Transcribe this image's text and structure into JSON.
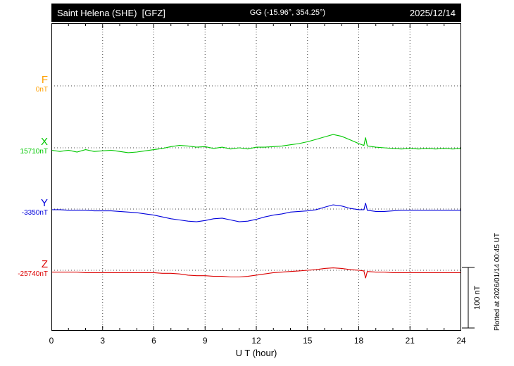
{
  "header": {
    "station": "Saint Helena (SHE)  [GFZ]",
    "coords": "GG (-15.96°, 354.25°)",
    "date": "2025/12/14"
  },
  "x_axis": {
    "title": "U T (hour)"
  },
  "scalebar": {
    "label": "100 nT"
  },
  "plotted_at": "Plotted at 2026/01/14 00:45 UT",
  "chart_data": {
    "type": "line",
    "title": "Saint Helena (SHE) [GFZ] magnetogram",
    "date": "2025/12/14",
    "xlabel": "U T (hour)",
    "xlim": [
      0,
      24
    ],
    "x_ticks": [
      0,
      3,
      6,
      9,
      12,
      15,
      18,
      21,
      24
    ],
    "scale_bar_nT": 100,
    "y_unit": "nT offset from component baseline",
    "grid": "dotted",
    "series": [
      {
        "name": "F",
        "baseline": "0nT",
        "color": "#ffa000",
        "points": []
      },
      {
        "name": "X",
        "baseline": "15710nT",
        "color": "#00c800",
        "points": [
          [
            0,
            -4
          ],
          [
            0.5,
            -6
          ],
          [
            1,
            -4
          ],
          [
            1.5,
            -7
          ],
          [
            2,
            -3
          ],
          [
            2.5,
            -6
          ],
          [
            3,
            -5
          ],
          [
            3.5,
            -4
          ],
          [
            4,
            -6
          ],
          [
            4.5,
            -8
          ],
          [
            5,
            -7
          ],
          [
            5.5,
            -5
          ],
          [
            6,
            -3
          ],
          [
            6.5,
            -1
          ],
          [
            7,
            2
          ],
          [
            7.5,
            4
          ],
          [
            8,
            3
          ],
          [
            8.5,
            1
          ],
          [
            9,
            2
          ],
          [
            9.5,
            -1
          ],
          [
            10,
            1
          ],
          [
            10.5,
            -2
          ],
          [
            11,
            0
          ],
          [
            11.5,
            -2
          ],
          [
            12,
            1
          ],
          [
            12.5,
            1
          ],
          [
            13,
            2
          ],
          [
            13.5,
            3
          ],
          [
            14,
            5
          ],
          [
            14.5,
            7
          ],
          [
            15,
            10
          ],
          [
            15.5,
            14
          ],
          [
            16,
            18
          ],
          [
            16.5,
            22
          ],
          [
            17,
            19
          ],
          [
            17.5,
            13
          ],
          [
            18,
            7
          ],
          [
            18.3,
            4
          ],
          [
            18.4,
            17
          ],
          [
            18.5,
            3
          ],
          [
            19,
            1
          ],
          [
            19.5,
            0
          ],
          [
            20,
            -1
          ],
          [
            20.5,
            -2
          ],
          [
            21,
            -1
          ],
          [
            21.5,
            -2
          ],
          [
            22,
            -1
          ],
          [
            22.5,
            -2
          ],
          [
            23,
            -1
          ],
          [
            23.5,
            -2
          ],
          [
            24,
            -1
          ]
        ]
      },
      {
        "name": "Y",
        "baseline": "-3350nT",
        "color": "#0000dc",
        "points": [
          [
            0,
            -1
          ],
          [
            0.5,
            -1
          ],
          [
            1,
            -2
          ],
          [
            1.5,
            -2
          ],
          [
            2,
            -2
          ],
          [
            2.5,
            -3
          ],
          [
            3,
            -3
          ],
          [
            3.5,
            -3
          ],
          [
            4,
            -4
          ],
          [
            4.5,
            -5
          ],
          [
            5,
            -6
          ],
          [
            5.5,
            -8
          ],
          [
            6,
            -10
          ],
          [
            6.5,
            -13
          ],
          [
            7,
            -16
          ],
          [
            7.5,
            -18
          ],
          [
            8,
            -20
          ],
          [
            8.5,
            -21
          ],
          [
            9,
            -19
          ],
          [
            9.5,
            -16
          ],
          [
            10,
            -15
          ],
          [
            10.5,
            -18
          ],
          [
            11,
            -21
          ],
          [
            11.5,
            -20
          ],
          [
            12,
            -17
          ],
          [
            12.5,
            -13
          ],
          [
            13,
            -10
          ],
          [
            13.5,
            -8
          ],
          [
            14,
            -5
          ],
          [
            14.5,
            -4
          ],
          [
            15,
            -3
          ],
          [
            15.5,
            -1
          ],
          [
            16,
            3
          ],
          [
            16.5,
            7
          ],
          [
            17,
            5
          ],
          [
            17.5,
            1
          ],
          [
            18,
            -1
          ],
          [
            18.3,
            -1
          ],
          [
            18.4,
            10
          ],
          [
            18.5,
            -2
          ],
          [
            19,
            -4
          ],
          [
            19.5,
            -4
          ],
          [
            20,
            -3
          ],
          [
            20.5,
            -2
          ],
          [
            21,
            -2
          ],
          [
            21.5,
            -2
          ],
          [
            22,
            -2
          ],
          [
            22.5,
            -2
          ],
          [
            23,
            -2
          ],
          [
            23.5,
            -2
          ],
          [
            24,
            -2
          ]
        ]
      },
      {
        "name": "Z",
        "baseline": "-25740nT",
        "color": "#dc0000",
        "points": [
          [
            0,
            -3
          ],
          [
            0.5,
            -3
          ],
          [
            1,
            -3
          ],
          [
            1.5,
            -3
          ],
          [
            2,
            -4
          ],
          [
            2.5,
            -4
          ],
          [
            3,
            -4
          ],
          [
            3.5,
            -4
          ],
          [
            4,
            -4
          ],
          [
            4.5,
            -4
          ],
          [
            5,
            -4
          ],
          [
            5.5,
            -4
          ],
          [
            6,
            -4
          ],
          [
            6.5,
            -5
          ],
          [
            7,
            -5
          ],
          [
            7.5,
            -6
          ],
          [
            8,
            -8
          ],
          [
            8.5,
            -9
          ],
          [
            9,
            -9
          ],
          [
            9.5,
            -10
          ],
          [
            10,
            -10
          ],
          [
            10.5,
            -11
          ],
          [
            11,
            -11
          ],
          [
            11.5,
            -10
          ],
          [
            12,
            -8
          ],
          [
            12.5,
            -6
          ],
          [
            13,
            -4
          ],
          [
            13.5,
            -3
          ],
          [
            14,
            -2
          ],
          [
            14.5,
            -1
          ],
          [
            15,
            0
          ],
          [
            15.5,
            1
          ],
          [
            16,
            3
          ],
          [
            16.5,
            4
          ],
          [
            17,
            3
          ],
          [
            17.5,
            1
          ],
          [
            18,
            0
          ],
          [
            18.3,
            -1
          ],
          [
            18.4,
            -13
          ],
          [
            18.5,
            -2
          ],
          [
            19,
            -3
          ],
          [
            19.5,
            -3
          ],
          [
            20,
            -4
          ],
          [
            20.5,
            -4
          ],
          [
            21,
            -4
          ],
          [
            21.5,
            -4
          ],
          [
            22,
            -4
          ],
          [
            22.5,
            -4
          ],
          [
            23,
            -4
          ],
          [
            23.5,
            -4
          ],
          [
            24,
            -4
          ]
        ]
      }
    ]
  }
}
